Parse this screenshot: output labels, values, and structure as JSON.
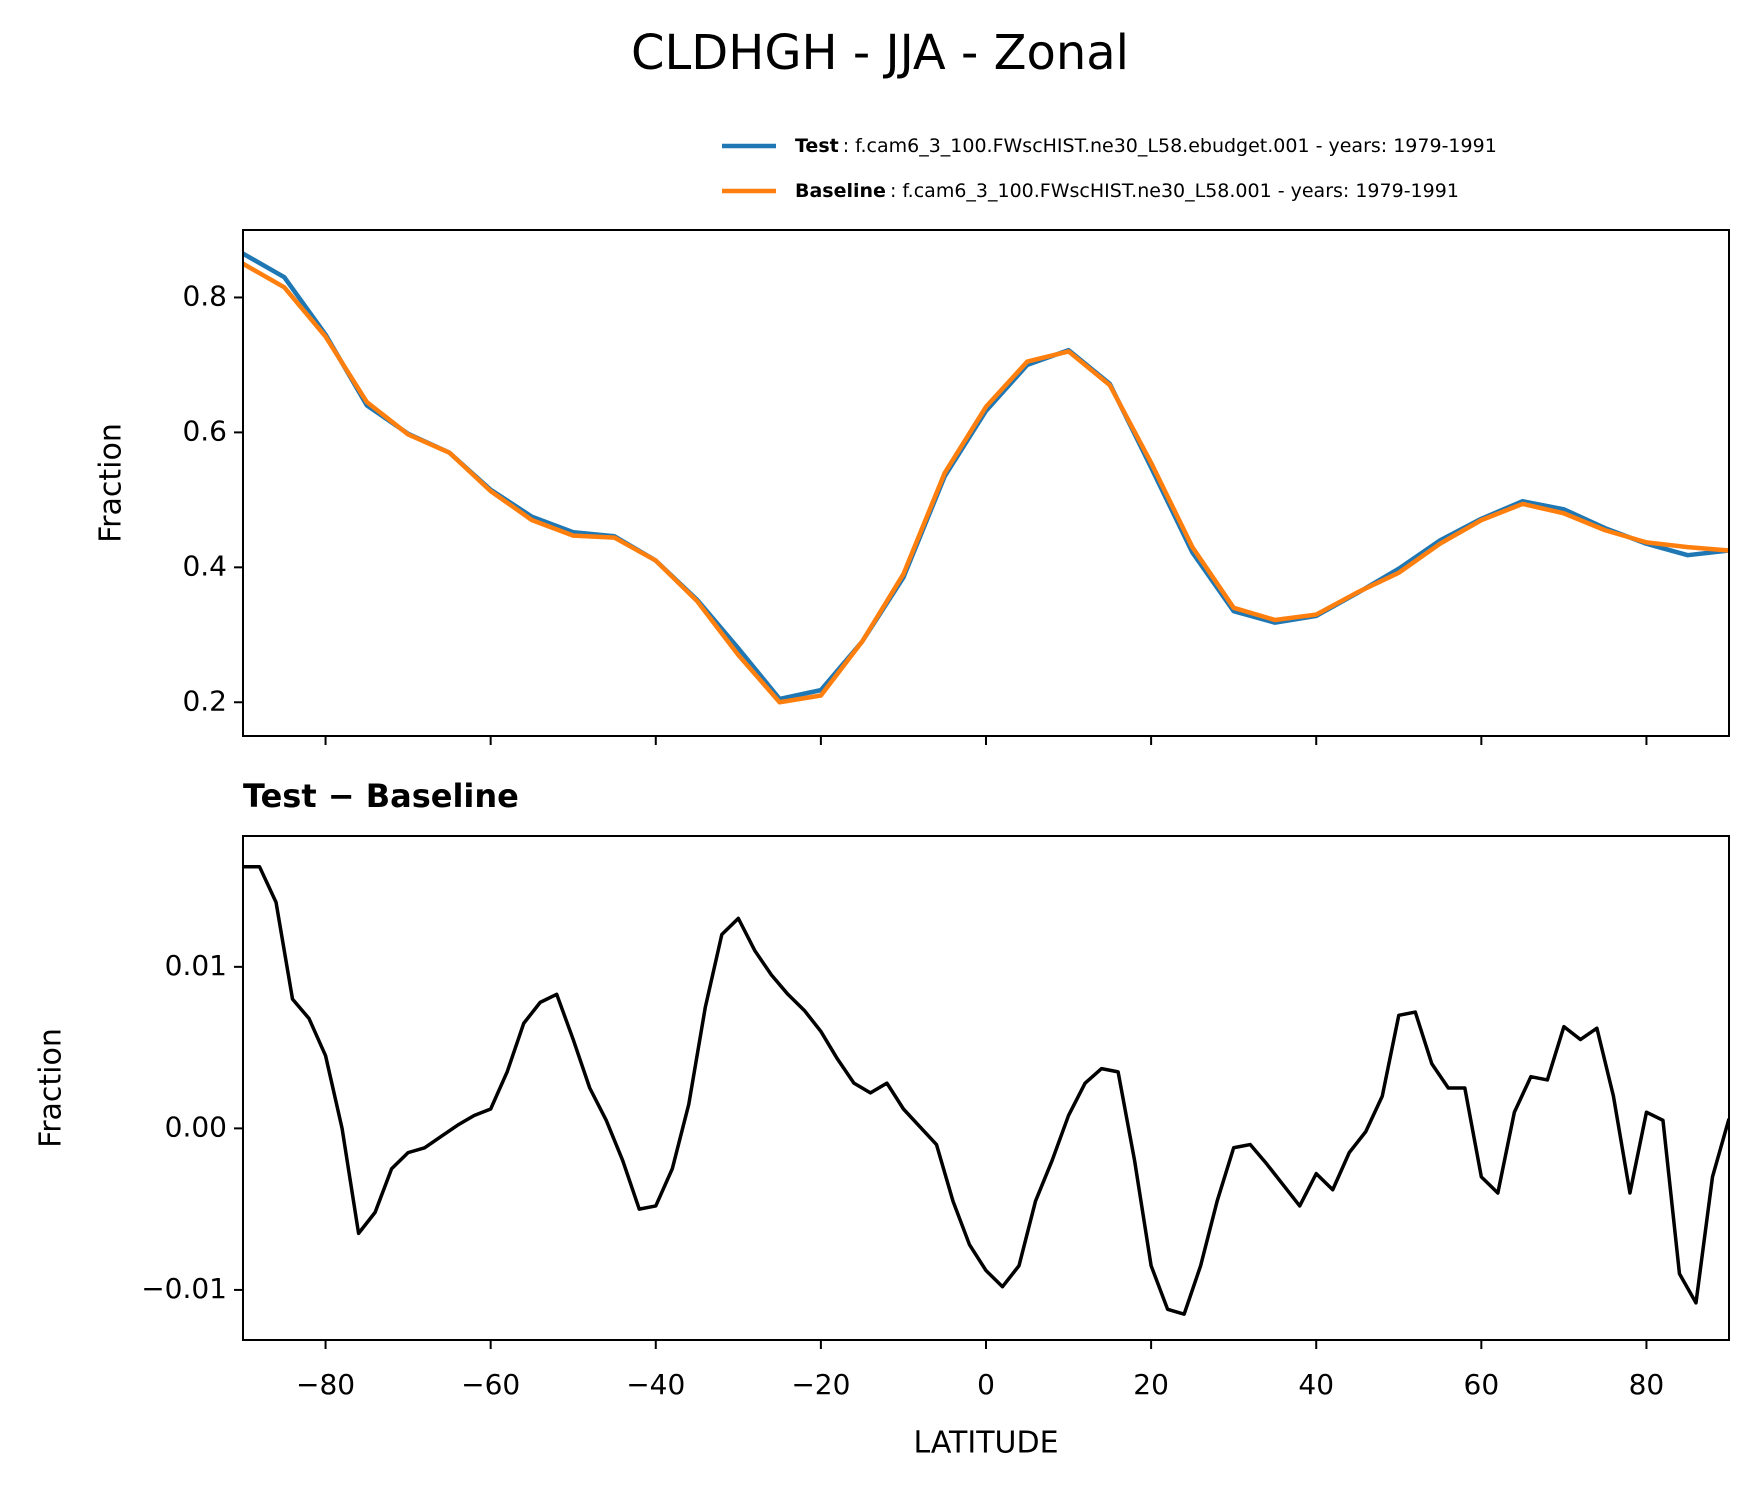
{
  "title": "CLDHGH - JJA - Zonal",
  "chart_data": [
    {
      "type": "line",
      "ylabel": "Fraction",
      "xlim": [
        -90,
        90
      ],
      "xticks": [
        -80,
        -60,
        -40,
        -20,
        0,
        20,
        40,
        60,
        80
      ],
      "show_xtick_labels": false,
      "ylim": [
        0.15,
        0.9
      ],
      "yticks": [
        0.2,
        0.4,
        0.6,
        0.8
      ],
      "legend": "upper right",
      "x": [
        -90,
        -85,
        -80,
        -75,
        -70,
        -65,
        -60,
        -55,
        -50,
        -45,
        -40,
        -35,
        -30,
        -25,
        -20,
        -15,
        -10,
        -5,
        0,
        5,
        10,
        15,
        20,
        25,
        30,
        35,
        40,
        45,
        50,
        55,
        60,
        65,
        70,
        75,
        80,
        85,
        90
      ],
      "series": [
        {
          "name": "Test",
          "description": ": f.cam6_3_100.FWscHIST.ne30_L58.ebudget.001 - years: 1979-1991",
          "color": "#1f77b4",
          "values": [
            0.865,
            0.83,
            0.745,
            0.64,
            0.598,
            0.57,
            0.515,
            0.475,
            0.452,
            0.446,
            0.41,
            0.352,
            0.28,
            0.205,
            0.218,
            0.29,
            0.385,
            0.535,
            0.632,
            0.7,
            0.722,
            0.672,
            0.548,
            0.422,
            0.335,
            0.318,
            0.328,
            0.362,
            0.398,
            0.44,
            0.472,
            0.498,
            0.486,
            0.458,
            0.435,
            0.418,
            0.425
          ]
        },
        {
          "name": "Baseline",
          "description": ": f.cam6_3_100.FWscHIST.ne30_L58.001 - years: 1979-1991",
          "color": "#ff7f0e",
          "values": [
            0.85,
            0.815,
            0.742,
            0.645,
            0.597,
            0.57,
            0.513,
            0.47,
            0.447,
            0.444,
            0.41,
            0.35,
            0.27,
            0.2,
            0.21,
            0.29,
            0.39,
            0.54,
            0.638,
            0.705,
            0.72,
            0.67,
            0.555,
            0.43,
            0.34,
            0.322,
            0.33,
            0.363,
            0.392,
            0.435,
            0.47,
            0.494,
            0.48,
            0.455,
            0.437,
            0.43,
            0.425
          ]
        }
      ]
    },
    {
      "type": "line",
      "title": "Test − Baseline",
      "ylabel": "Fraction",
      "xlabel": "LATITUDE",
      "xlim": [
        -90,
        90
      ],
      "xticks": [
        {
          "value": -80,
          "label": "−80"
        },
        {
          "value": -60,
          "label": "−60"
        },
        {
          "value": -40,
          "label": "−40"
        },
        {
          "value": -20,
          "label": "−20"
        },
        0,
        20,
        40,
        60,
        80
      ],
      "show_xtick_labels": true,
      "ylim": [
        -0.0131,
        0.0181
      ],
      "yticks": [
        {
          "value": -0.01,
          "label": "−0.01"
        },
        {
          "value": 0,
          "label": "0.00"
        },
        {
          "value": 0.01,
          "label": "0.01"
        }
      ],
      "x": [
        -90,
        -88,
        -86,
        -84,
        -82,
        -80,
        -78,
        -76,
        -74,
        -72,
        -70,
        -68,
        -66,
        -64,
        -62,
        -60,
        -58,
        -56,
        -54,
        -52,
        -50,
        -48,
        -46,
        -44,
        -42,
        -40,
        -38,
        -36,
        -34,
        -32,
        -30,
        -28,
        -26,
        -24,
        -22,
        -20,
        -18,
        -16,
        -14,
        -12,
        -10,
        -8,
        -6,
        -4,
        -2,
        0,
        2,
        4,
        6,
        8,
        10,
        12,
        14,
        16,
        18,
        20,
        22,
        24,
        26,
        28,
        30,
        32,
        34,
        36,
        38,
        40,
        42,
        44,
        46,
        48,
        50,
        52,
        54,
        56,
        58,
        60,
        62,
        64,
        66,
        68,
        70,
        72,
        74,
        76,
        78,
        80,
        82,
        84,
        86,
        88,
        90
      ],
      "series": [
        {
          "name": "Test − Baseline",
          "color": "#000000",
          "values": [
            0.0162,
            0.0162,
            0.014,
            0.008,
            0.0068,
            0.0045,
            0.0,
            -0.0065,
            -0.0052,
            -0.0025,
            -0.0015,
            -0.0012,
            -0.0005,
            0.0002,
            0.0008,
            0.0012,
            0.0035,
            0.0065,
            0.0078,
            0.0083,
            0.0055,
            0.0025,
            0.0005,
            -0.002,
            -0.005,
            -0.0048,
            -0.0025,
            0.0015,
            0.0075,
            0.012,
            0.013,
            0.011,
            0.0095,
            0.0083,
            0.0073,
            0.006,
            0.0043,
            0.0028,
            0.0022,
            0.0028,
            0.0012,
            0.0001,
            -0.001,
            -0.0045,
            -0.0072,
            -0.0088,
            -0.0098,
            -0.0085,
            -0.0045,
            -0.002,
            0.0008,
            0.0028,
            0.0037,
            0.0035,
            -0.002,
            -0.0085,
            -0.0112,
            -0.0115,
            -0.0085,
            -0.0045,
            -0.0012,
            -0.001,
            -0.0022,
            -0.0035,
            -0.0048,
            -0.0028,
            -0.0038,
            -0.0015,
            -0.0002,
            0.002,
            0.007,
            0.0072,
            0.004,
            0.0025,
            0.0025,
            -0.003,
            -0.004,
            0.001,
            0.0032,
            0.003,
            0.0063,
            0.0055,
            0.0062,
            0.002,
            -0.004,
            0.001,
            0.0005,
            -0.009,
            -0.0108,
            -0.003,
            0.0006
          ]
        }
      ]
    }
  ]
}
